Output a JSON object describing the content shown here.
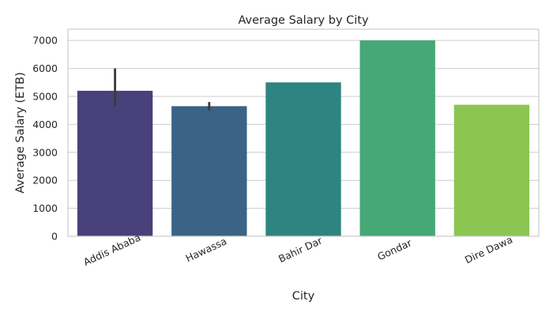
{
  "chart_data": {
    "type": "bar",
    "title": "Average Salary by City",
    "xlabel": "City",
    "ylabel": "Average Salary (ETB)",
    "categories": [
      "Addis Ababa",
      "Hawassa",
      "Bahir Dar",
      "Gondar",
      "Dire Dawa"
    ],
    "values": [
      5200,
      4650,
      5500,
      7000,
      4700
    ],
    "error_bars": [
      [
        4650,
        6000
      ],
      [
        4500,
        4800
      ],
      null,
      null,
      null
    ],
    "colors": [
      "#48417a",
      "#3a6385",
      "#2e8480",
      "#45a876",
      "#8bc653"
    ],
    "ylim": [
      0,
      7400
    ],
    "yticks": [
      0,
      1000,
      2000,
      3000,
      4000,
      5000,
      6000,
      7000
    ],
    "grid": true,
    "legend": null
  }
}
